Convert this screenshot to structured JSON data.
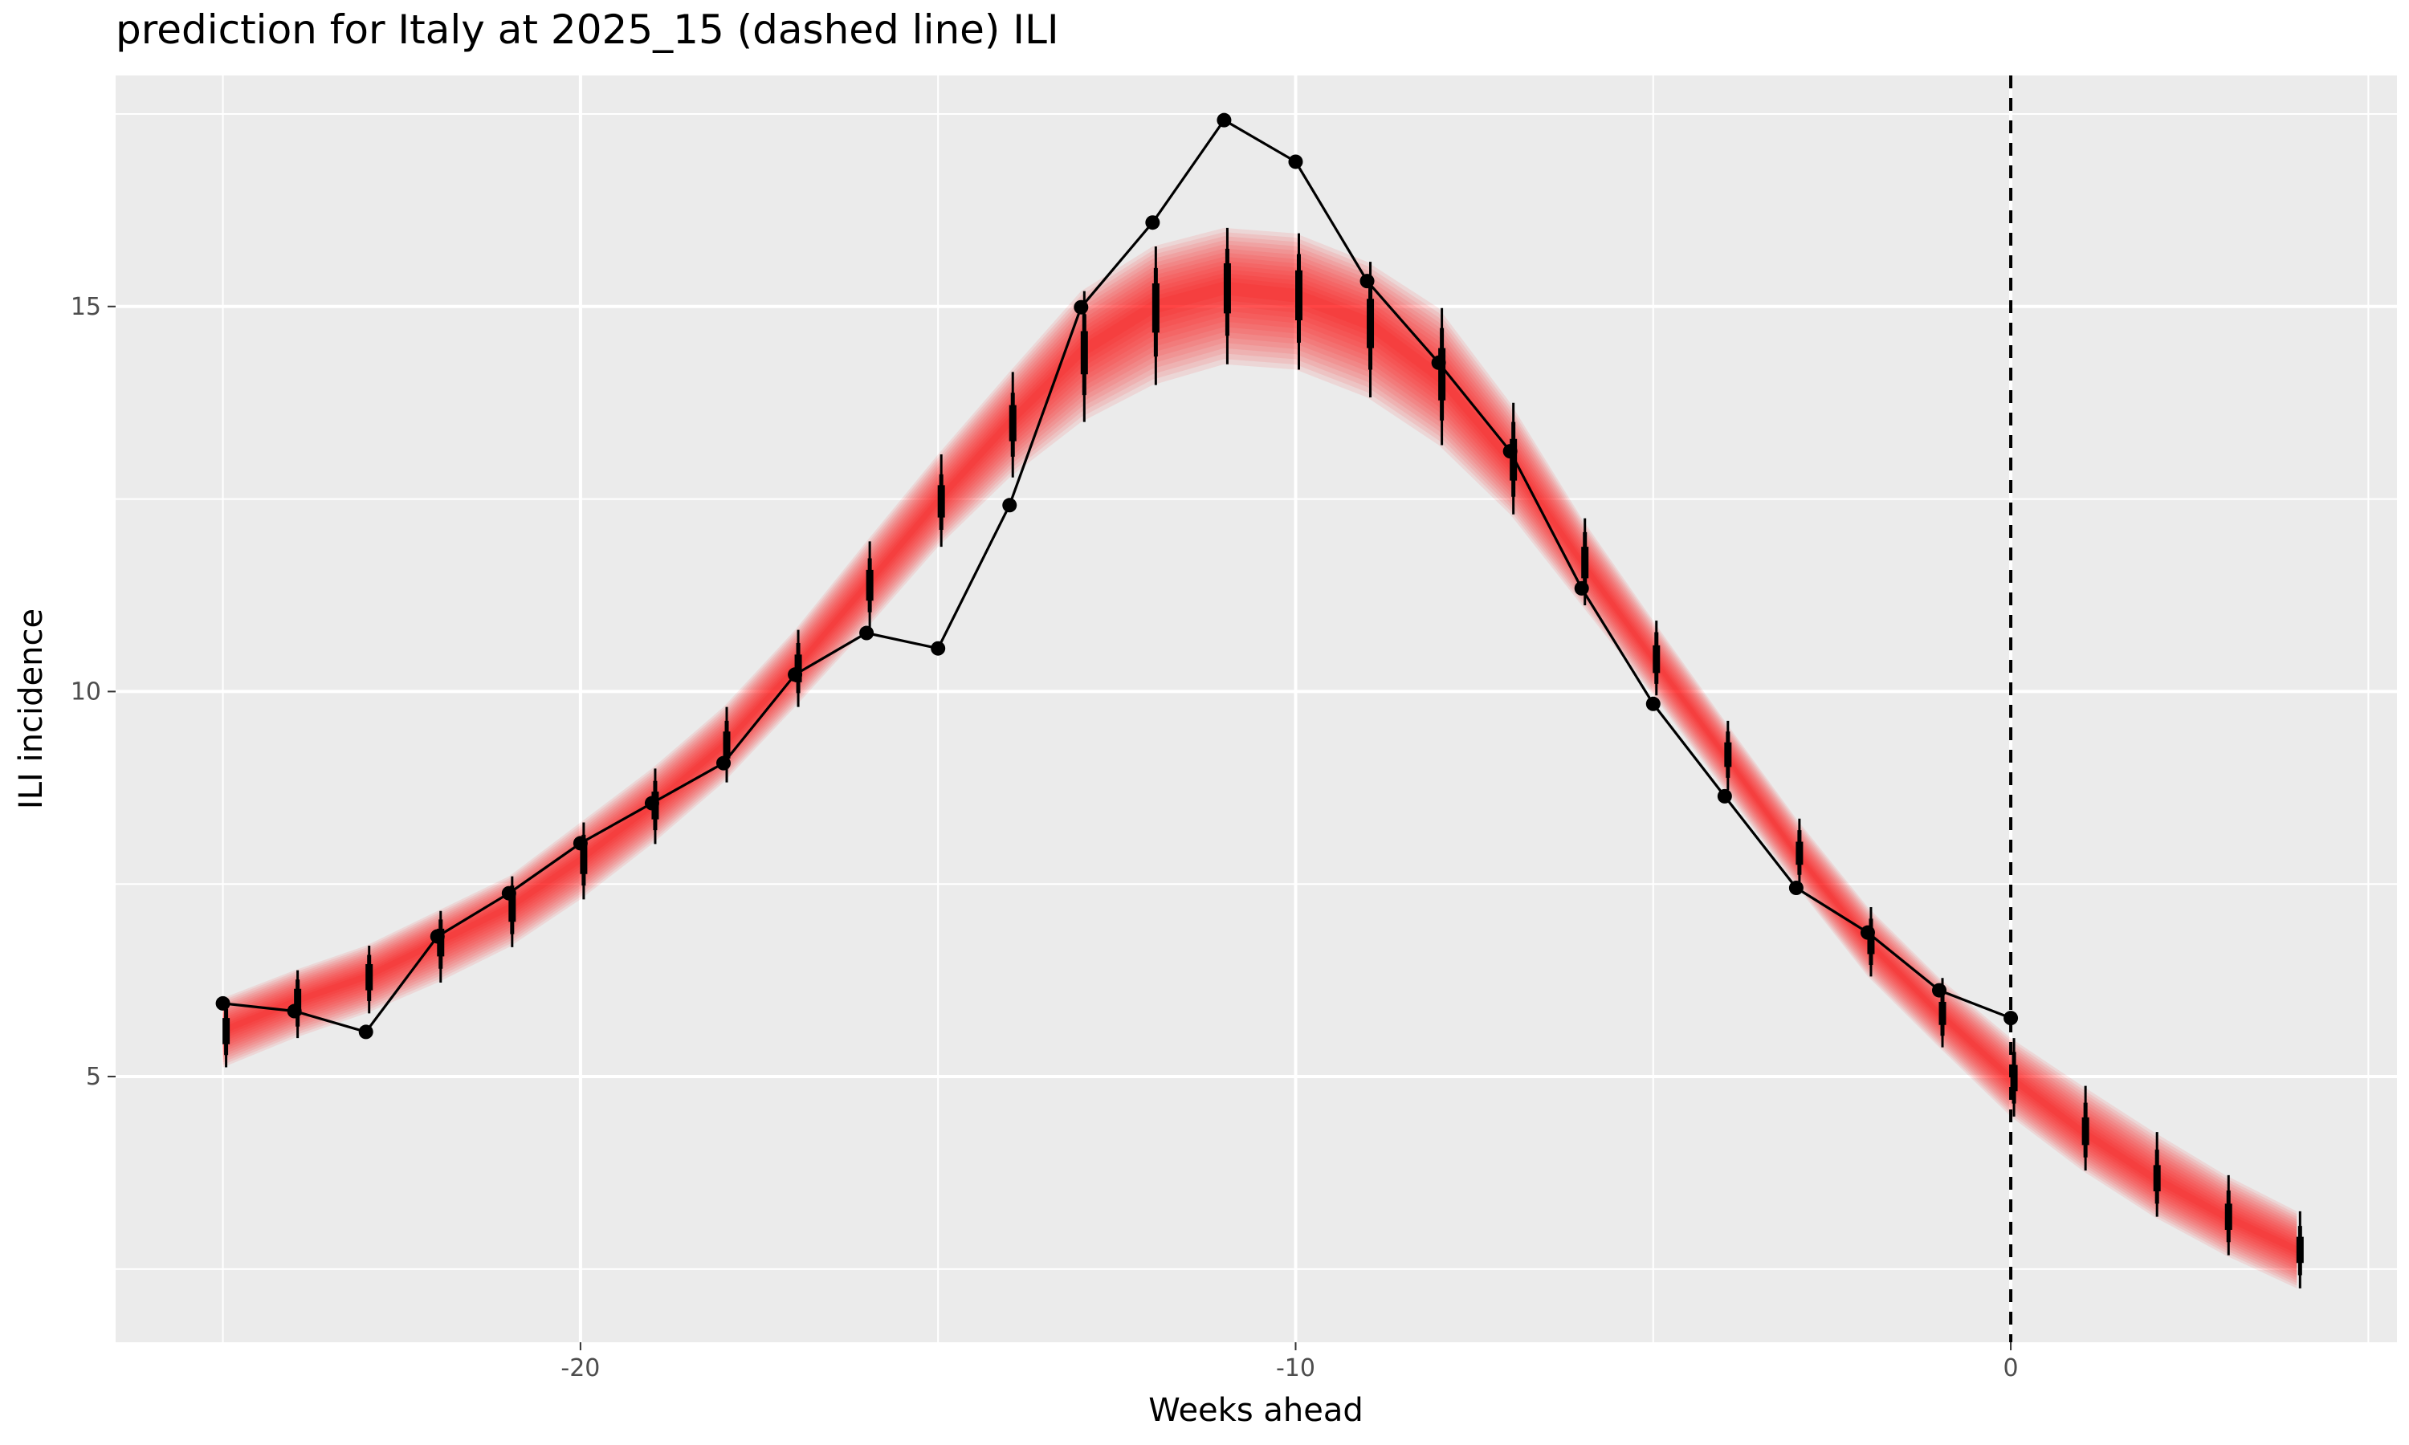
{
  "chart_data": {
    "type": "line",
    "title": "prediction for Italy at 2025_15 (dashed line) ILI",
    "xlabel": "Weeks ahead",
    "ylabel": "ILI incidence",
    "xlim": [
      -26.5,
      5.4
    ],
    "ylim": [
      1.55,
      18.0
    ],
    "x_ticks": [
      -20,
      -10,
      0
    ],
    "x_tick_labels": [
      "-20",
      "-10",
      "0"
    ],
    "y_ticks": [
      5,
      10,
      15
    ],
    "y_tick_labels": [
      "5",
      "10",
      "15"
    ],
    "vline_x": 0,
    "grid": true,
    "observed": {
      "x": [
        -25,
        -24,
        -23,
        -22,
        -21,
        -20,
        -19,
        -18,
        -17,
        -16,
        -15,
        -14,
        -13,
        -12,
        -11,
        -10,
        -9,
        -8,
        -7,
        -6,
        -5,
        -4,
        -3,
        -2,
        -1,
        0
      ],
      "y": [
        5.95,
        5.85,
        5.58,
        6.82,
        7.38,
        8.03,
        8.55,
        9.07,
        10.22,
        10.76,
        10.56,
        12.42,
        14.99,
        16.09,
        17.42,
        16.88,
        15.33,
        14.27,
        13.12,
        11.34,
        9.84,
        8.64,
        7.45,
        6.87,
        6.12,
        5.76
      ]
    },
    "prediction": {
      "x": [
        -25,
        -24,
        -23,
        -22,
        -21,
        -20,
        -19,
        -18,
        -17,
        -16,
        -15,
        -14,
        -13,
        -12,
        -11,
        -10,
        -9,
        -8,
        -7,
        -6,
        -5,
        -4,
        -3,
        -2,
        -1,
        0,
        1,
        2,
        3,
        4
      ],
      "median": [
        5.6,
        5.98,
        6.3,
        6.75,
        7.2,
        7.82,
        8.52,
        9.3,
        10.3,
        11.38,
        12.48,
        13.5,
        14.42,
        15.0,
        15.25,
        15.15,
        14.8,
        14.1,
        13.0,
        11.68,
        10.42,
        9.18,
        7.9,
        6.75,
        5.82,
        4.98,
        4.28,
        3.68,
        3.18,
        2.75
      ],
      "interval": [
        {
          "level": 0.95,
          "lower": [
            5.12,
            5.5,
            5.82,
            6.22,
            6.68,
            7.3,
            8.02,
            8.82,
            9.8,
            10.82,
            11.88,
            12.78,
            13.5,
            13.98,
            14.25,
            14.18,
            13.82,
            13.2,
            12.3,
            11.12,
            9.95,
            8.72,
            7.48,
            6.3,
            5.38,
            4.48,
            3.78,
            3.18,
            2.68,
            2.25
          ],
          "upper": [
            6.02,
            6.38,
            6.7,
            7.15,
            7.6,
            8.3,
            9.0,
            9.8,
            10.8,
            11.95,
            13.08,
            14.15,
            15.2,
            15.78,
            16.02,
            15.95,
            15.58,
            14.98,
            13.75,
            12.25,
            10.92,
            9.62,
            8.35,
            7.2,
            6.28,
            5.5,
            4.88,
            4.28,
            3.72,
            3.25
          ]
        },
        {
          "level": 0.8,
          "lower": [
            5.28,
            5.65,
            5.98,
            6.4,
            6.85,
            7.48,
            8.2,
            9.0,
            9.98,
            11.03,
            12.1,
            13.05,
            13.85,
            14.35,
            14.62,
            14.53,
            14.18,
            13.52,
            12.53,
            11.3,
            10.1,
            8.88,
            7.62,
            6.45,
            5.53,
            4.65,
            3.95,
            3.35,
            2.85,
            2.42
          ],
          "upper": [
            5.88,
            6.26,
            6.58,
            7.04,
            7.48,
            8.14,
            8.84,
            9.62,
            10.63,
            11.73,
            12.82,
            13.88,
            14.9,
            15.5,
            15.75,
            15.68,
            15.32,
            14.72,
            13.5,
            12.07,
            10.77,
            9.48,
            8.2,
            7.05,
            6.12,
            5.32,
            4.66,
            4.05,
            3.52,
            3.06
          ]
        },
        {
          "level": 0.5,
          "lower": [
            5.42,
            5.8,
            6.12,
            6.56,
            7.01,
            7.63,
            8.34,
            9.13,
            10.12,
            11.18,
            12.26,
            13.25,
            14.12,
            14.66,
            14.91,
            14.82,
            14.46,
            13.78,
            12.74,
            11.47,
            10.24,
            9.02,
            7.75,
            6.59,
            5.67,
            4.81,
            4.11,
            3.51,
            3.01,
            2.58
          ],
          "upper": [
            5.76,
            6.14,
            6.46,
            6.92,
            7.36,
            8.0,
            8.7,
            9.48,
            10.48,
            11.58,
            12.68,
            13.72,
            14.68,
            15.3,
            15.56,
            15.47,
            15.1,
            14.46,
            13.28,
            11.88,
            10.6,
            9.34,
            8.05,
            6.9,
            5.97,
            5.15,
            4.47,
            3.85,
            3.35,
            2.92
          ]
        }
      ]
    },
    "colors": {
      "panel_background": "#ebebeb",
      "grid": "#ffffff",
      "observed": "#000000",
      "prediction_band": "#ff0000",
      "interval_bars": "#000000",
      "vline": "#000000"
    }
  }
}
